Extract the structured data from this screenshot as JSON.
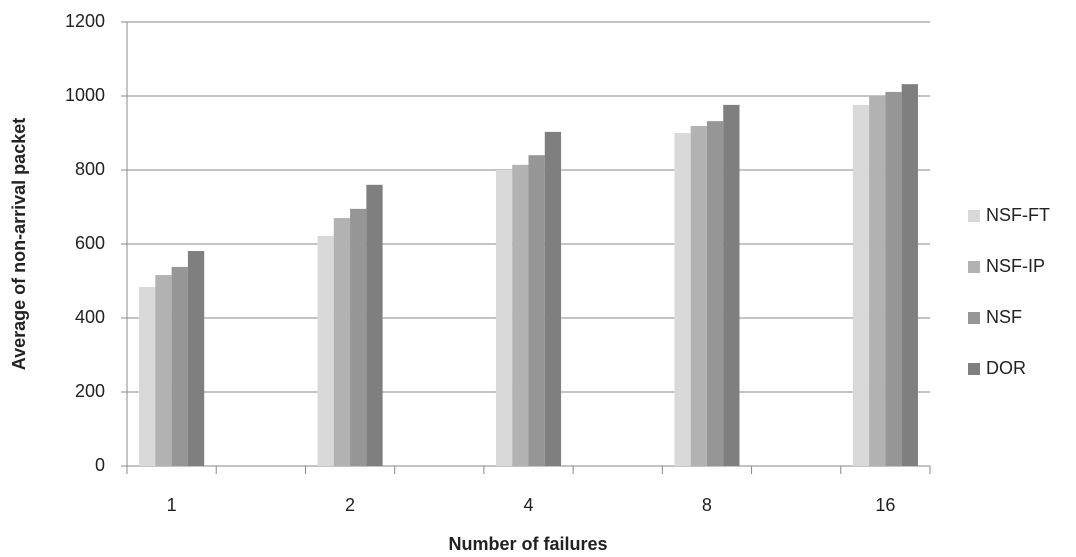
{
  "chart_data": {
    "type": "bar",
    "x_label": "Number of failures",
    "y_label": "Average of non-arrival packet",
    "categories": [
      "1",
      null,
      "2",
      null,
      "4",
      null,
      "8",
      null,
      "16"
    ],
    "series": [
      {
        "name": "NSF-FT",
        "color": "#d9d9d9",
        "values": [
          484,
          null,
          622,
          null,
          800,
          null,
          900,
          null,
          976
        ]
      },
      {
        "name": "NSF-IP",
        "color": "#b2b2b2",
        "values": [
          516,
          null,
          670,
          null,
          814,
          null,
          919,
          null,
          1000
        ]
      },
      {
        "name": "NSF",
        "color": "#969696",
        "values": [
          538,
          null,
          695,
          null,
          840,
          null,
          932,
          null,
          1011
        ]
      },
      {
        "name": "DOR",
        "color": "#7f7f7f",
        "values": [
          581,
          null,
          760,
          null,
          903,
          null,
          976,
          null,
          1032
        ]
      }
    ],
    "ylim": [
      0,
      1200
    ],
    "yticks": [
      0,
      200,
      400,
      600,
      800,
      1000,
      1200
    ],
    "grid": true,
    "legend": "right"
  }
}
